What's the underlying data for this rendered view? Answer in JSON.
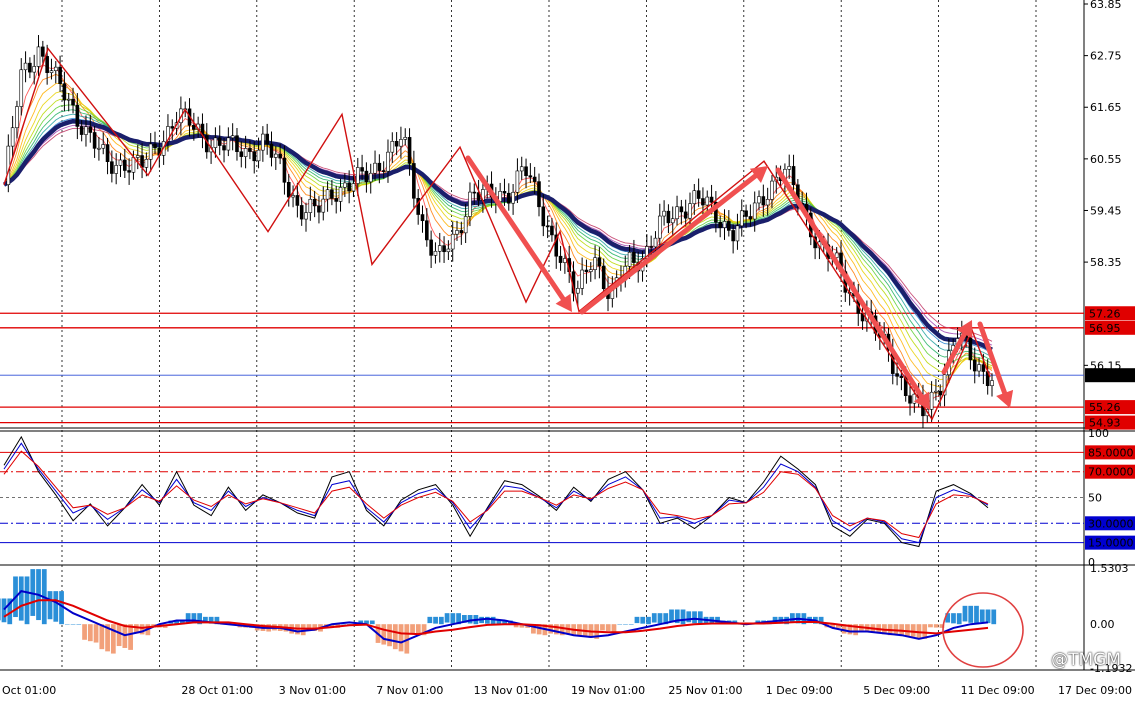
{
  "chart_data": {
    "type": "line",
    "x_tick_labels": [
      "Oct 01:00",
      "28 Oct 01:00",
      "3 Nov 01:00",
      "7 Nov 01:00",
      "13 Nov 01:00",
      "19 Nov 01:00",
      "25 Nov 01:00",
      "1 Dec 09:00",
      "5 Dec 09:00",
      "11 Dec 09:00",
      "17 Dec 09:00"
    ],
    "price_panel": {
      "type": "candlestick",
      "y_range": [
        54.9,
        63.85
      ],
      "y_tick_labels": [
        "63.85",
        "62.75",
        "61.65",
        "60.55",
        "59.45",
        "58.35",
        "56.15"
      ],
      "horizontal_levels": [
        {
          "label": "57.26",
          "value": 57.26,
          "color": "#e00000"
        },
        {
          "label": "56.95",
          "value": 56.95,
          "color": "#e00000"
        },
        {
          "label": "55.94",
          "value": 55.94,
          "color": "#2f4fd6",
          "current": true
        },
        {
          "label": "55.26",
          "value": 55.26,
          "color": "#e00000"
        },
        {
          "label": "54.93",
          "value": 54.93,
          "color": "#e00000"
        }
      ],
      "close_series": [
        60.0,
        62.3,
        62.9,
        62.2,
        61.6,
        61.0,
        60.4,
        60.5,
        60.4,
        60.9,
        61.5,
        61.2,
        60.9,
        60.8,
        60.7,
        60.9,
        60.3,
        59.5,
        59.4,
        59.9,
        60.0,
        60.2,
        60.6,
        61.0,
        59.3,
        58.4,
        58.8,
        59.9,
        59.7,
        59.8,
        60.4,
        59.4,
        58.6,
        57.6,
        58.6,
        57.5,
        58.4,
        58.5,
        59.2,
        59.5,
        59.7,
        59.4,
        59.0,
        59.3,
        59.9,
        60.3,
        59.6,
        58.7,
        58.3,
        57.6,
        57.0,
        56.5,
        55.6,
        55.1,
        55.8,
        56.8,
        56.2,
        55.9
      ],
      "swing_points": [
        60.0,
        62.9,
        60.2,
        61.6,
        59.9,
        60.5,
        59.0,
        60.9,
        58.3,
        60.8,
        57.5,
        57.3,
        60.5,
        57.2,
        55.0,
        56.9,
        55.2
      ]
    },
    "stochastic_panel": {
      "y_range": [
        0,
        100
      ],
      "y_tick_labels": [
        "100",
        "50",
        "0"
      ],
      "levels": [
        {
          "label": "85.0000",
          "value": 85,
          "color": "#e00000"
        },
        {
          "label": "70.0000",
          "value": 70,
          "color": "#e00000"
        },
        {
          "label": "30.0000",
          "value": 30,
          "color": "#0000d0"
        },
        {
          "label": "15.0000",
          "value": 15,
          "color": "#0000d0"
        }
      ],
      "series": [
        {
          "color": "#000000",
          "values": [
            75,
            97,
            70,
            52,
            32,
            45,
            28,
            42,
            60,
            44,
            70,
            44,
            36,
            58,
            40,
            52,
            46,
            38,
            34,
            66,
            70,
            40,
            28,
            48,
            56,
            60,
            44,
            20,
            42,
            63,
            60,
            51,
            40,
            58,
            47,
            64,
            70,
            56,
            30,
            34,
            26,
            36,
            50,
            46,
            62,
            82,
            72,
            60,
            28,
            20,
            33,
            30,
            15,
            12,
            55,
            60,
            53,
            42
          ]
        },
        {
          "color": "#0000d0",
          "values": [
            72,
            92,
            72,
            55,
            38,
            44,
            33,
            42,
            56,
            46,
            64,
            46,
            40,
            55,
            43,
            50,
            46,
            40,
            36,
            60,
            63,
            42,
            31,
            46,
            53,
            57,
            46,
            26,
            41,
            59,
            57,
            50,
            42,
            55,
            48,
            60,
            66,
            56,
            34,
            35,
            30,
            36,
            48,
            46,
            58,
            76,
            70,
            58,
            32,
            24,
            34,
            31,
            18,
            15,
            50,
            56,
            52,
            44
          ]
        },
        {
          "color": "#e00000",
          "values": [
            68,
            86,
            74,
            58,
            42,
            44,
            37,
            42,
            52,
            47,
            59,
            48,
            43,
            52,
            45,
            49,
            46,
            42,
            38,
            55,
            58,
            45,
            34,
            44,
            50,
            54,
            47,
            31,
            40,
            55,
            55,
            50,
            44,
            52,
            49,
            57,
            62,
            56,
            38,
            36,
            33,
            36,
            45,
            46,
            54,
            70,
            68,
            57,
            36,
            28,
            34,
            32,
            22,
            19,
            45,
            52,
            51,
            45
          ]
        }
      ]
    },
    "oscillator_panel": {
      "y_range": [
        -1.1932,
        1.5303
      ],
      "y_tick_labels": [
        "1.5303",
        "0.00",
        "-1.1932"
      ],
      "histogram": [
        0.7,
        1.3,
        1.5,
        0.9,
        0.0,
        -0.5,
        -0.8,
        -0.7,
        -0.3,
        -0.1,
        0.1,
        0.3,
        0.2,
        0.0,
        -0.1,
        -0.2,
        -0.2,
        -0.3,
        -0.2,
        -0.1,
        0.0,
        0.1,
        -0.6,
        -0.8,
        -0.3,
        0.2,
        0.3,
        0.25,
        0.2,
        0.1,
        -0.1,
        -0.3,
        -0.3,
        -0.3,
        -0.4,
        -0.2,
        0.0,
        0.2,
        0.3,
        0.4,
        0.35,
        0.2,
        0.1,
        0.0,
        0.1,
        0.2,
        0.3,
        0.2,
        -0.1,
        -0.3,
        -0.2,
        -0.3,
        -0.35,
        -0.4,
        -0.1,
        0.3,
        0.5,
        0.4
      ],
      "series": [
        {
          "color": "#0000c8",
          "values": [
            0.4,
            0.9,
            0.8,
            0.6,
            0.3,
            0.1,
            -0.1,
            -0.3,
            -0.2,
            0.0,
            0.1,
            0.1,
            0.05,
            0.0,
            -0.05,
            -0.1,
            -0.1,
            -0.2,
            -0.15,
            0.0,
            0.05,
            0.0,
            -0.4,
            -0.5,
            -0.3,
            -0.1,
            0.0,
            0.1,
            0.15,
            0.1,
            0.0,
            -0.1,
            -0.2,
            -0.3,
            -0.35,
            -0.3,
            -0.2,
            -0.1,
            0.0,
            0.1,
            0.15,
            0.1,
            0.05,
            0.0,
            0.05,
            0.1,
            0.15,
            0.1,
            -0.1,
            -0.2,
            -0.2,
            -0.25,
            -0.3,
            -0.4,
            -0.3,
            -0.1,
            0.0,
            0.05
          ]
        },
        {
          "color": "#e00000",
          "values": [
            0.2,
            0.5,
            0.65,
            0.65,
            0.5,
            0.3,
            0.1,
            -0.05,
            -0.1,
            -0.05,
            0.0,
            0.05,
            0.05,
            0.05,
            0.0,
            -0.05,
            -0.08,
            -0.12,
            -0.12,
            -0.08,
            -0.03,
            -0.01,
            -0.15,
            -0.25,
            -0.27,
            -0.2,
            -0.15,
            -0.08,
            -0.02,
            0.0,
            0.0,
            -0.03,
            -0.08,
            -0.15,
            -0.2,
            -0.22,
            -0.22,
            -0.18,
            -0.12,
            -0.05,
            0.0,
            0.02,
            0.02,
            0.02,
            0.02,
            0.04,
            0.06,
            0.06,
            0.01,
            -0.05,
            -0.1,
            -0.15,
            -0.18,
            -0.22,
            -0.25,
            -0.2,
            -0.15,
            -0.1
          ]
        }
      ]
    }
  },
  "watermark": "@TMGM"
}
